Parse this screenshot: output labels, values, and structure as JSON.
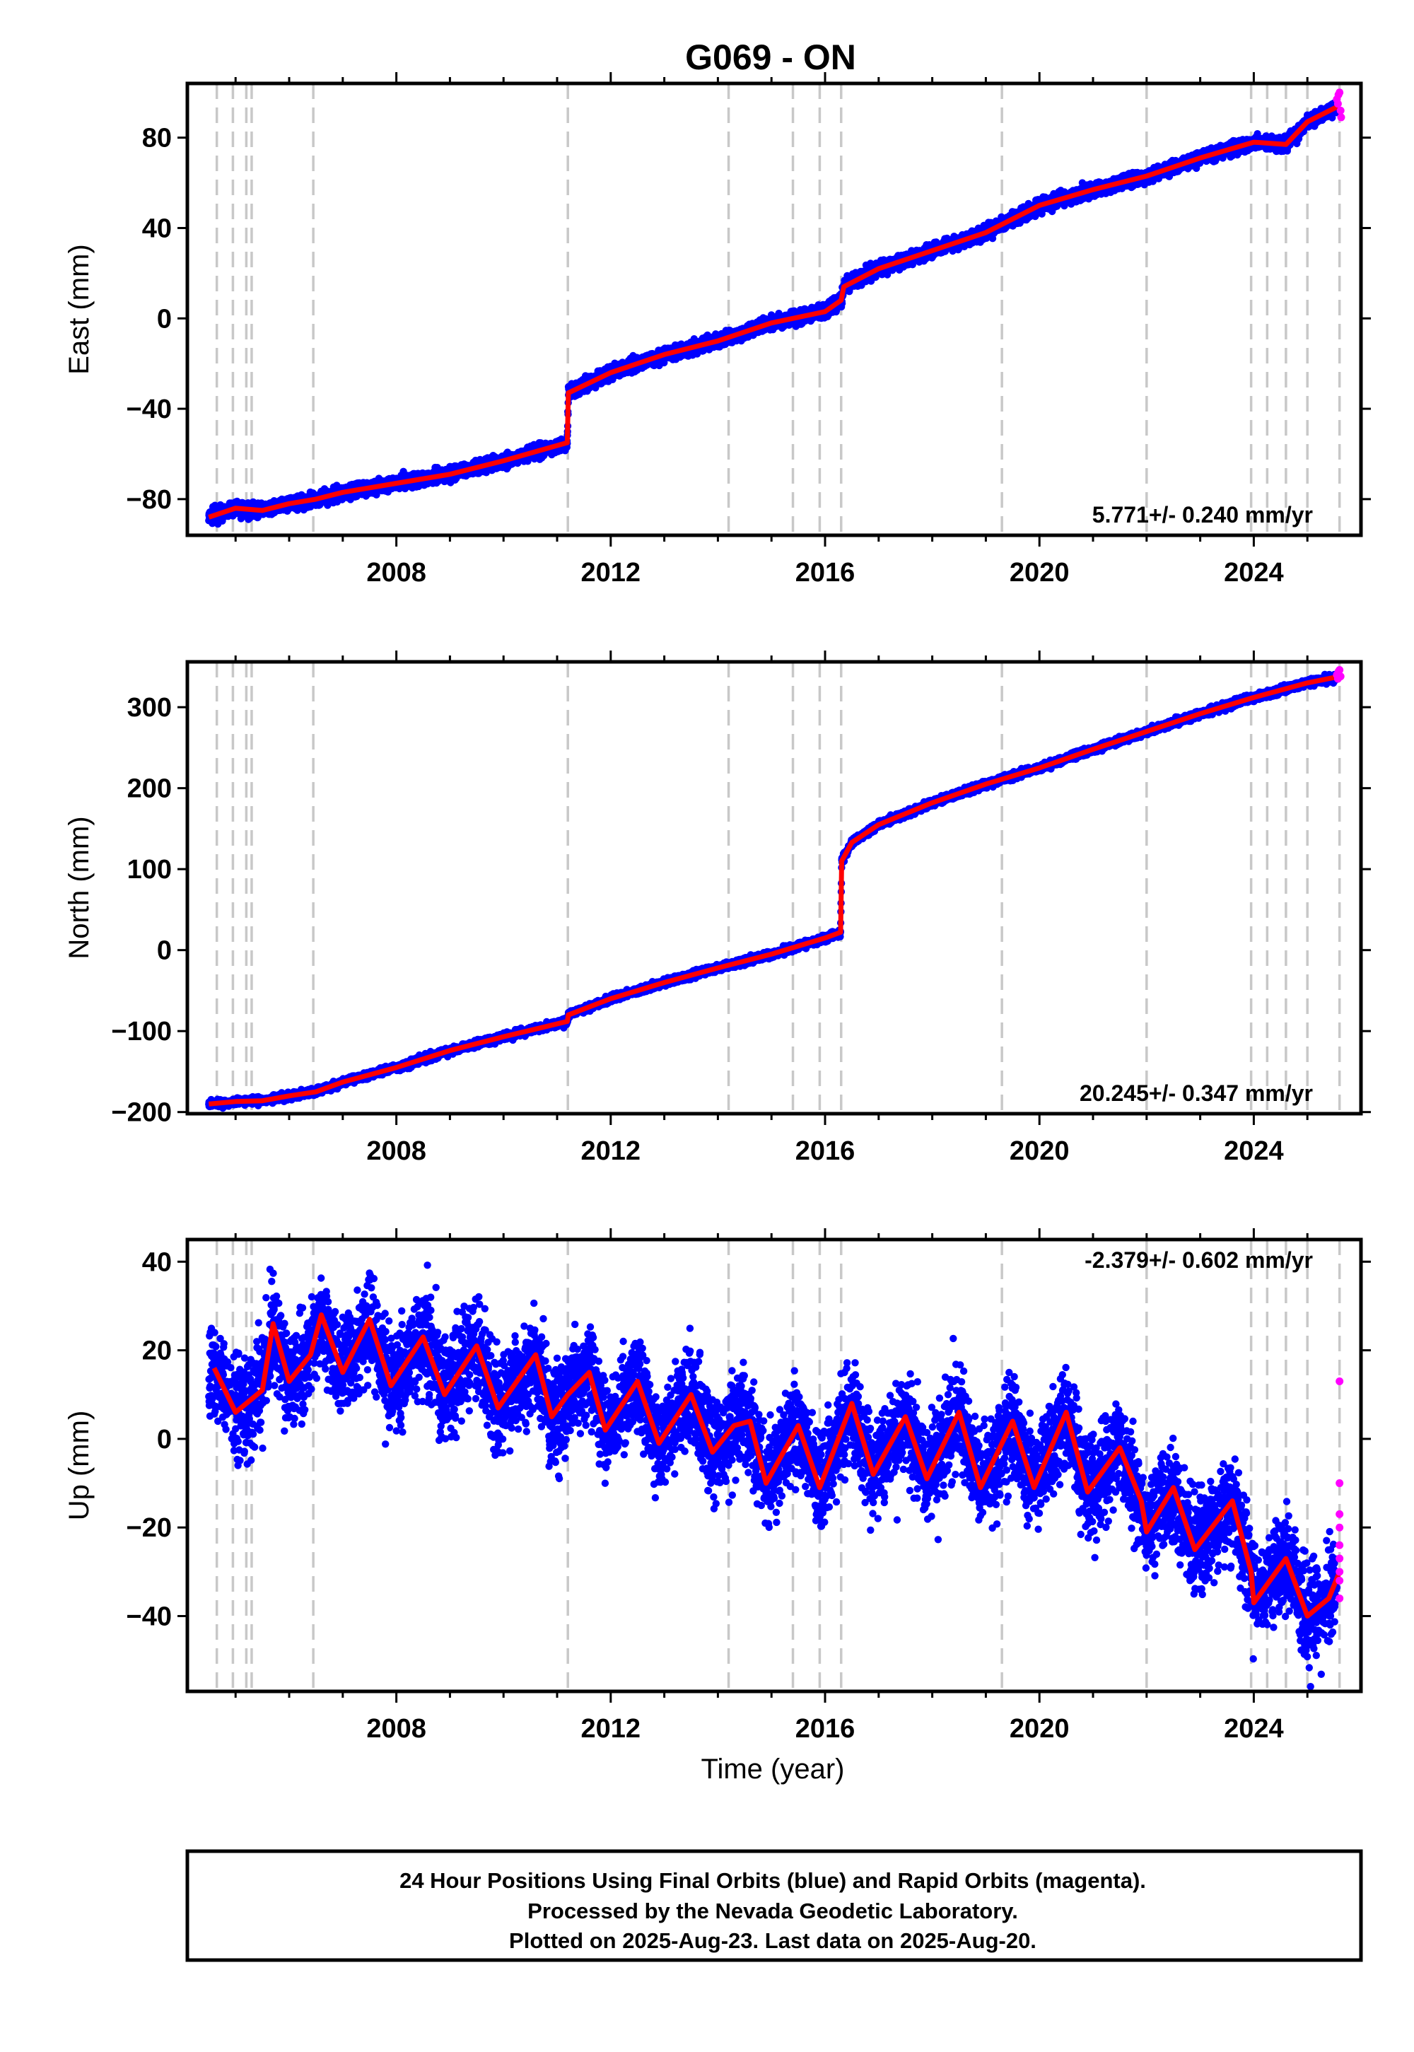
{
  "title": "G069 - ON",
  "xlabel": "Time (year)",
  "x_ticks": [
    "2008",
    "2012",
    "2016",
    "2020",
    "2024"
  ],
  "colors": {
    "final": "#0000ff",
    "rapid": "#ff00ff",
    "model": "#ff0000",
    "event_line": "#c8c8c8"
  },
  "chart_data": [
    {
      "type": "scatter",
      "component": "east",
      "ylabel": "East (mm)",
      "ylim": [
        -96,
        104
      ],
      "xlim": [
        2004.1,
        2026.0
      ],
      "y_ticks": [
        80,
        40,
        0,
        -40,
        -80
      ],
      "y_tick_labels": [
        "80",
        "40",
        "0",
        "−40",
        "−80"
      ],
      "rate_label": "5.771+/- 0.240 mm/yr",
      "rate_position": "bottom-right",
      "offsets": [
        {
          "t": 2011.2,
          "dy": 22
        }
      ],
      "model": [
        [
          2004.5,
          -88
        ],
        [
          2005.0,
          -84
        ],
        [
          2005.5,
          -85
        ],
        [
          2006.0,
          -82
        ],
        [
          2006.5,
          -80
        ],
        [
          2007.0,
          -77
        ],
        [
          2008.0,
          -73
        ],
        [
          2009.0,
          -69
        ],
        [
          2010.0,
          -63
        ],
        [
          2011.19,
          -55
        ],
        [
          2011.21,
          -33
        ],
        [
          2012.0,
          -24
        ],
        [
          2013.0,
          -16
        ],
        [
          2014.0,
          -10
        ],
        [
          2015.0,
          -2
        ],
        [
          2016.0,
          3
        ],
        [
          2016.3,
          8
        ],
        [
          2016.35,
          14
        ],
        [
          2017.0,
          22
        ],
        [
          2018.0,
          30
        ],
        [
          2019.0,
          38
        ],
        [
          2020.0,
          50
        ],
        [
          2021.0,
          57
        ],
        [
          2022.0,
          63
        ],
        [
          2023.0,
          71
        ],
        [
          2024.0,
          78
        ],
        [
          2024.6,
          77
        ],
        [
          2025.0,
          87
        ],
        [
          2025.5,
          93
        ],
        [
          2025.6,
          94
        ]
      ],
      "rapid_points": [
        [
          2025.55,
          97
        ],
        [
          2025.58,
          99
        ],
        [
          2025.6,
          100
        ],
        [
          2025.62,
          92
        ],
        [
          2025.63,
          89
        ],
        [
          2025.57,
          95
        ]
      ]
    },
    {
      "type": "scatter",
      "component": "north",
      "ylabel": "North (mm)",
      "ylim": [
        -202,
        356
      ],
      "xlim": [
        2004.1,
        2026.0
      ],
      "y_ticks": [
        300,
        200,
        100,
        0,
        -100,
        -200
      ],
      "y_tick_labels": [
        "300",
        "200",
        "100",
        "0",
        "−100",
        "−200"
      ],
      "rate_label": "20.245+/- 0.347 mm/yr",
      "rate_position": "bottom-right",
      "offsets": [
        {
          "t": 2011.2,
          "dy": 6
        },
        {
          "t": 2016.3,
          "dy": 90
        }
      ],
      "model": [
        [
          2004.5,
          -190
        ],
        [
          2005.0,
          -187
        ],
        [
          2005.5,
          -186
        ],
        [
          2006.0,
          -180
        ],
        [
          2006.5,
          -175
        ],
        [
          2007.0,
          -163
        ],
        [
          2008.0,
          -145
        ],
        [
          2009.0,
          -124
        ],
        [
          2010.0,
          -107
        ],
        [
          2011.19,
          -88
        ],
        [
          2011.21,
          -80
        ],
        [
          2012.0,
          -60
        ],
        [
          2013.0,
          -40
        ],
        [
          2014.0,
          -22
        ],
        [
          2015.0,
          -5
        ],
        [
          2016.0,
          15
        ],
        [
          2016.29,
          22
        ],
        [
          2016.31,
          110
        ],
        [
          2016.5,
          133
        ],
        [
          2017.0,
          155
        ],
        [
          2018.0,
          182
        ],
        [
          2019.0,
          205
        ],
        [
          2020.0,
          225
        ],
        [
          2021.0,
          248
        ],
        [
          2022.0,
          270
        ],
        [
          2023.0,
          292
        ],
        [
          2024.0,
          312
        ],
        [
          2025.0,
          330
        ],
        [
          2025.6,
          338
        ]
      ],
      "rapid_points": [
        [
          2025.55,
          340
        ],
        [
          2025.58,
          344
        ],
        [
          2025.6,
          346
        ],
        [
          2025.62,
          338
        ],
        [
          2025.57,
          335
        ]
      ]
    },
    {
      "type": "scatter",
      "component": "up",
      "ylabel": "Up (mm)",
      "ylim": [
        -57,
        45
      ],
      "xlim": [
        2004.1,
        2026.0
      ],
      "y_ticks": [
        40,
        20,
        0,
        -20,
        -40
      ],
      "y_tick_labels": [
        "40",
        "20",
        "0",
        "−20",
        "−40"
      ],
      "rate_label": "-2.379+/- 0.602 mm/yr",
      "rate_position": "top-right",
      "offsets": [
        {
          "t": 2022.9,
          "dy": -18
        }
      ],
      "model": [
        [
          2004.6,
          16
        ],
        [
          2005.0,
          6
        ],
        [
          2005.3,
          9
        ],
        [
          2005.5,
          11
        ],
        [
          2005.7,
          26
        ],
        [
          2006.0,
          13
        ],
        [
          2006.4,
          19
        ],
        [
          2006.6,
          28
        ],
        [
          2007.0,
          15
        ],
        [
          2007.5,
          27
        ],
        [
          2007.9,
          12
        ],
        [
          2008.5,
          23
        ],
        [
          2008.9,
          10
        ],
        [
          2009.5,
          21
        ],
        [
          2009.9,
          7
        ],
        [
          2010.6,
          19
        ],
        [
          2010.9,
          5
        ],
        [
          2011.2,
          10
        ],
        [
          2011.6,
          15
        ],
        [
          2011.9,
          2
        ],
        [
          2012.5,
          13
        ],
        [
          2012.9,
          -1
        ],
        [
          2013.5,
          10
        ],
        [
          2013.9,
          -3
        ],
        [
          2014.3,
          3
        ],
        [
          2014.6,
          4
        ],
        [
          2014.9,
          -10
        ],
        [
          2015.5,
          3
        ],
        [
          2015.9,
          -11
        ],
        [
          2016.5,
          8
        ],
        [
          2016.9,
          -8
        ],
        [
          2017.5,
          5
        ],
        [
          2017.9,
          -9
        ],
        [
          2018.5,
          6
        ],
        [
          2018.9,
          -11
        ],
        [
          2019.5,
          4
        ],
        [
          2019.9,
          -11
        ],
        [
          2020.5,
          6
        ],
        [
          2020.9,
          -12
        ],
        [
          2021.5,
          -2
        ],
        [
          2021.9,
          -14
        ],
        [
          2022.0,
          -21
        ],
        [
          2022.5,
          -11
        ],
        [
          2022.9,
          -25
        ],
        [
          2023.6,
          -14
        ],
        [
          2023.95,
          -30
        ],
        [
          2024.0,
          -37
        ],
        [
          2024.6,
          -27
        ],
        [
          2025.0,
          -40
        ],
        [
          2025.4,
          -36
        ],
        [
          2025.6,
          -30
        ]
      ],
      "rapid_points": [
        [
          2025.6,
          13
        ],
        [
          2025.6,
          -10
        ],
        [
          2025.6,
          -17
        ],
        [
          2025.6,
          -20
        ],
        [
          2025.6,
          -24
        ],
        [
          2025.6,
          -27
        ],
        [
          2025.6,
          -30
        ],
        [
          2025.6,
          -32
        ],
        [
          2025.6,
          -36
        ]
      ]
    }
  ],
  "event_lines": [
    2004.65,
    2004.95,
    2005.2,
    2005.3,
    2006.45,
    2011.2,
    2014.2,
    2015.4,
    2015.9,
    2016.3,
    2019.3,
    2022.0,
    2023.95,
    2024.25,
    2024.6,
    2025.0,
    2025.6
  ],
  "footer": [
    "24 Hour Positions Using Final Orbits (blue) and Rapid Orbits (magenta).",
    "Processed by the Nevada Geodetic Laboratory.",
    "Plotted on 2025-Aug-23. Last data on 2025-Aug-20."
  ]
}
